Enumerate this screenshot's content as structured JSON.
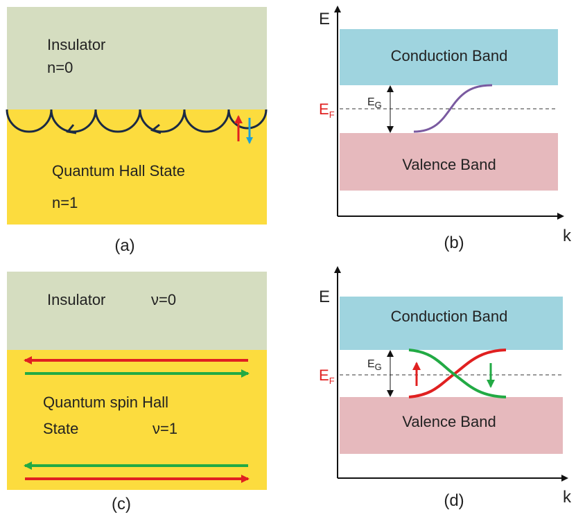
{
  "panel_a": {
    "top_label": "Insulator",
    "top_index": "n=0",
    "bottom_label": "Quantum Hall State",
    "bottom_index": "n=1",
    "caption": "(a)"
  },
  "panel_b": {
    "y_axis": "E",
    "x_axis": "k",
    "conduction": "Conduction Band",
    "valence": "Valence Band",
    "gap": {
      "main": "E",
      "sub": "G"
    },
    "fermi": {
      "main": "E",
      "sub": "F"
    },
    "caption": "(b)"
  },
  "panel_c": {
    "top_label": "Insulator",
    "top_index": "ν=0",
    "bottom_label_1": "Quantum spin Hall",
    "bottom_label_2": "State",
    "bottom_index": "ν=1",
    "caption": "(c)"
  },
  "panel_d": {
    "y_axis": "E",
    "x_axis": "k",
    "conduction": "Conduction Band",
    "valence": "Valence Band",
    "gap": {
      "main": "E",
      "sub": "G"
    },
    "fermi": {
      "main": "E",
      "sub": "F"
    },
    "caption": "(d)"
  }
}
